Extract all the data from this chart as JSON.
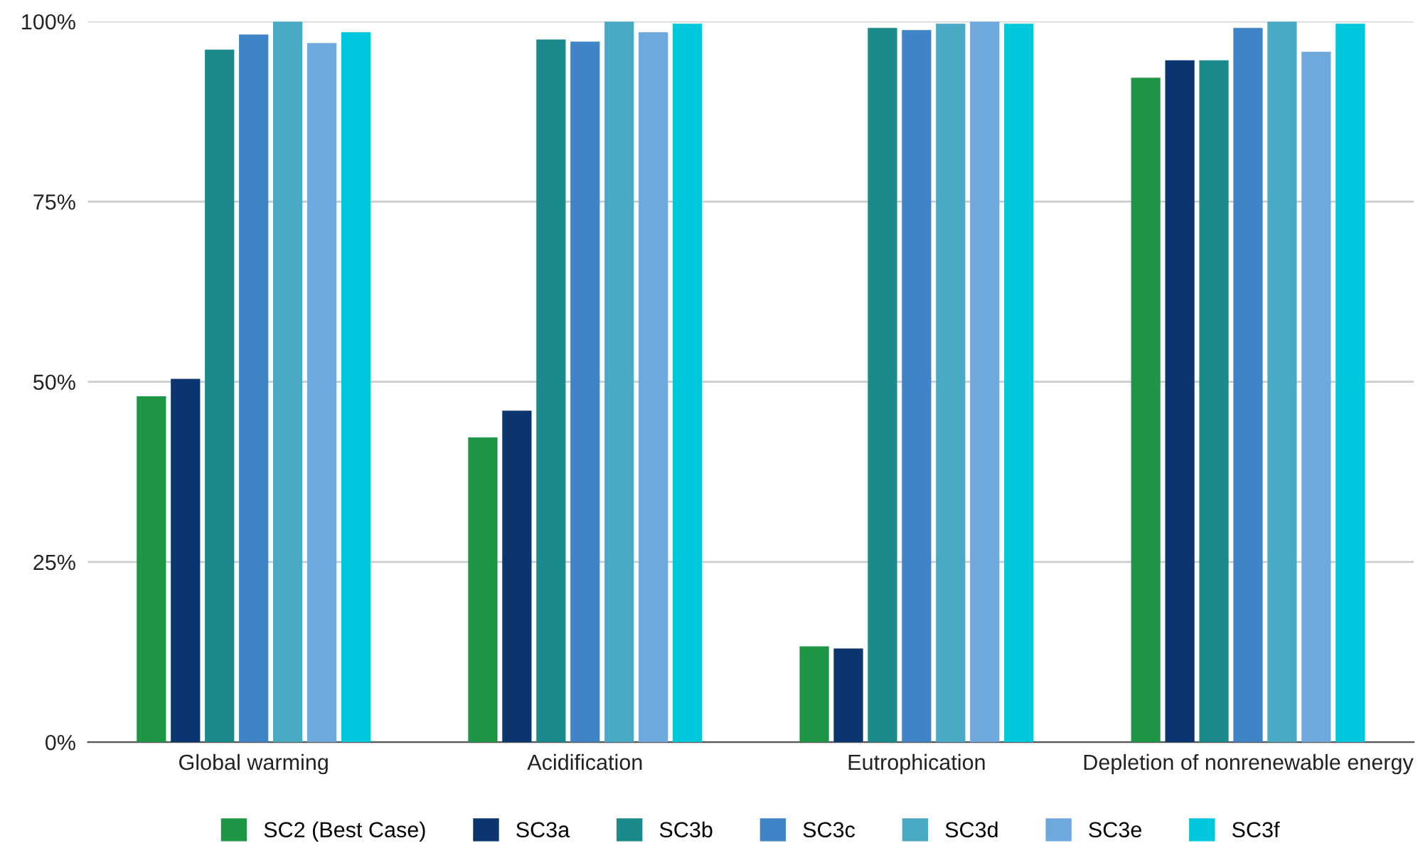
{
  "chart_data": {
    "type": "bar",
    "categories": [
      "Global warming",
      "Acidification",
      "Eutrophication",
      "Depletion of nonrenewable energy"
    ],
    "series": [
      {
        "name": "SC2 (Best Case)",
        "color": "#1e9646",
        "values": [
          48.0,
          42.3,
          13.3,
          92.2
        ]
      },
      {
        "name": "SC3a",
        "color": "#0b356e",
        "values": [
          50.4,
          46.0,
          13.0,
          94.6
        ]
      },
      {
        "name": "SC3b",
        "color": "#1a8a8a",
        "values": [
          96.1,
          97.5,
          99.1,
          94.6
        ]
      },
      {
        "name": "SC3c",
        "color": "#3f84c6",
        "values": [
          98.2,
          97.2,
          98.8,
          99.1
        ]
      },
      {
        "name": "SC3d",
        "color": "#4aaac4",
        "values": [
          100,
          100,
          99.7,
          100
        ]
      },
      {
        "name": "SC3e",
        "color": "#6fa8dc",
        "values": [
          97.0,
          98.5,
          100,
          95.8
        ]
      },
      {
        "name": "SC3f",
        "color": "#00c8dc",
        "values": [
          98.5,
          99.7,
          99.7,
          99.7
        ]
      }
    ],
    "ylim": [
      0,
      100
    ],
    "yticks": [
      {
        "value": 0,
        "label": "0%"
      },
      {
        "value": 25,
        "label": "25%"
      },
      {
        "value": 50,
        "label": "50%"
      },
      {
        "value": 75,
        "label": "75%"
      },
      {
        "value": 100,
        "label": "100%"
      }
    ],
    "grid": "y",
    "legend": "bottom"
  }
}
